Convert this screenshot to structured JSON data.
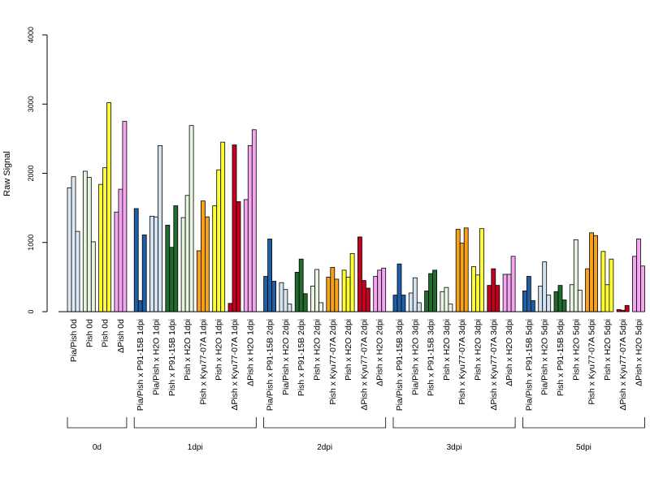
{
  "chart_data": {
    "type": "bar",
    "ylabel": "Raw Signal",
    "xlabel": "",
    "ylim": [
      0,
      4000
    ],
    "yticks": [
      0,
      1000,
      2000,
      3000,
      4000
    ],
    "grid": false,
    "legend": "none",
    "colors": {
      "Pia/Pish": "#deebf7",
      "Pia/Pish x P91-15B": "#1f5fa6",
      "Pia/Pish x H2O": "#d4e3f1",
      "Pish x P91-15B": "#226b2e",
      "Pish x H2O": "#e6f4e0",
      "Pish": "#e6f4e0",
      "Pish x Kyu77-07A": "#f7a21b",
      "ΔPish x Kyu77-07A": "#c50020",
      "ΔPish x H2O": "#f5a6f0",
      "ΔPish": "#f5a6f0",
      "Pish yellow": "#ffff33"
    },
    "groups": [
      {
        "label": "0d",
        "categories": [
          {
            "label": "Pia/Pish 0d",
            "color": "#deebf7",
            "values": [
              1790,
              1950,
              1160
            ]
          },
          {
            "label": "Pish 0d",
            "color": "#e6f4e0",
            "values": [
              2030,
              1940,
              1010
            ]
          },
          {
            "label": "Pish 0d",
            "color": "#ffff33",
            "values": [
              1840,
              2080,
              3020
            ]
          },
          {
            "label": "ΔPish 0d",
            "color": "#f5a6f0",
            "values": [
              1440,
              1770,
              2750
            ]
          }
        ]
      },
      {
        "label": "1dpi",
        "categories": [
          {
            "label": "Pia/Pish x P91-15B 1dpi",
            "color": "#1f5fa6",
            "values": [
              1490,
              160,
              1110
            ]
          },
          {
            "label": "Pia/Pish x H2O 1dpi",
            "color": "#d4e3f1",
            "values": [
              1380,
              1370,
              2400
            ]
          },
          {
            "label": "Pish x P91-15B 1dpi",
            "color": "#226b2e",
            "values": [
              1250,
              930,
              1530
            ]
          },
          {
            "label": "Pish x H2O 1dpi",
            "color": "#e6f4e0",
            "values": [
              1360,
              1680,
              2690
            ]
          },
          {
            "label": "Pish x Kyu77-07A 1dpi",
            "color": "#f7a21b",
            "values": [
              880,
              1600,
              1370
            ]
          },
          {
            "label": "Pish x H2O 1dpi",
            "color": "#ffff33",
            "values": [
              1530,
              2050,
              2450
            ]
          },
          {
            "label": "ΔPish x Kyu77-07A 1dpi",
            "color": "#c50020",
            "values": [
              120,
              2410,
              1590
            ]
          },
          {
            "label": "ΔPish x H2O 1dpi",
            "color": "#f5a6f0",
            "values": [
              1620,
              2400,
              2630
            ]
          }
        ]
      },
      {
        "label": "2dpi",
        "categories": [
          {
            "label": "Pia/Pish x P91-15B 2dpi",
            "color": "#1f5fa6",
            "values": [
              510,
              1050,
              440
            ]
          },
          {
            "label": "Pia/Pish x H2O 2dpi",
            "color": "#d4e3f1",
            "values": [
              420,
              320,
              110
            ]
          },
          {
            "label": "Pish x P91-15B 2dpi",
            "color": "#226b2e",
            "values": [
              570,
              760,
              260
            ]
          },
          {
            "label": "Pish x H2O 2dpi",
            "color": "#e6f4e0",
            "values": [
              370,
              610,
              130
            ]
          },
          {
            "label": "Pish x Kyu77-07A 2dpi",
            "color": "#f7a21b",
            "values": [
              500,
              640,
              470
            ]
          },
          {
            "label": "Pish x H2O 2dpi",
            "color": "#ffff33",
            "values": [
              600,
              500,
              840
            ]
          },
          {
            "label": "ΔPish x Kyu77-07A 2dpi",
            "color": "#c50020",
            "values": [
              1080,
              450,
              340
            ]
          },
          {
            "label": "ΔPish x H2O 2dpi",
            "color": "#f5a6f0",
            "values": [
              510,
              600,
              630
            ]
          }
        ]
      },
      {
        "label": "3dpi",
        "categories": [
          {
            "label": "Pia/Pish x P91-15B 3dpi",
            "color": "#1f5fa6",
            "values": [
              240,
              690,
              240
            ]
          },
          {
            "label": "Pia/Pish x H2O 3dpi",
            "color": "#d4e3f1",
            "values": [
              270,
              490,
              130
            ]
          },
          {
            "label": "Pish x P91-15B 3dpi",
            "color": "#226b2e",
            "values": [
              300,
              550,
              600
            ]
          },
          {
            "label": "Pish x H2O 3dpi",
            "color": "#e6f4e0",
            "values": [
              290,
              350,
              110
            ]
          },
          {
            "label": "Pish x Kyu77-07A 3dpi",
            "color": "#f7a21b",
            "values": [
              1190,
              990,
              1210
            ]
          },
          {
            "label": "Pish x H2O 3dpi",
            "color": "#ffff33",
            "values": [
              650,
              530,
              1200
            ]
          },
          {
            "label": "ΔPish x Kyu77-07A 3dpi",
            "color": "#c50020",
            "values": [
              380,
              620,
              380
            ]
          },
          {
            "label": "ΔPish x H2O 3dpi",
            "color": "#f5a6f0",
            "values": [
              540,
              540,
              800
            ]
          }
        ]
      },
      {
        "label": "5dpi",
        "categories": [
          {
            "label": "Pia/Pish x P91-15B 5dpi",
            "color": "#1f5fa6",
            "values": [
              300,
              510,
              160
            ]
          },
          {
            "label": "Pia/Pish x H2O 5dpi",
            "color": "#d4e3f1",
            "values": [
              370,
              720,
              240
            ]
          },
          {
            "label": "Pish x P91-15B 5dpi",
            "color": "#226b2e",
            "values": [
              290,
              380,
              170
            ]
          },
          {
            "label": "Pish x H2O 5dpi",
            "color": "#e6f4e0",
            "values": [
              390,
              1040,
              310
            ]
          },
          {
            "label": "Pish x Kyu77-07A 5dpi",
            "color": "#f7a21b",
            "values": [
              620,
              1140,
              1100
            ]
          },
          {
            "label": "Pish x H2O 5dpi",
            "color": "#ffff33",
            "values": [
              870,
              390,
              760
            ]
          },
          {
            "label": "ΔPish x Kyu77-07A 5dpi",
            "color": "#c50020",
            "values": [
              30,
              20,
              90
            ]
          },
          {
            "label": "ΔPish x H2O 5dpi",
            "color": "#f5a6f0",
            "values": [
              800,
              1050,
              660
            ]
          }
        ]
      }
    ]
  }
}
